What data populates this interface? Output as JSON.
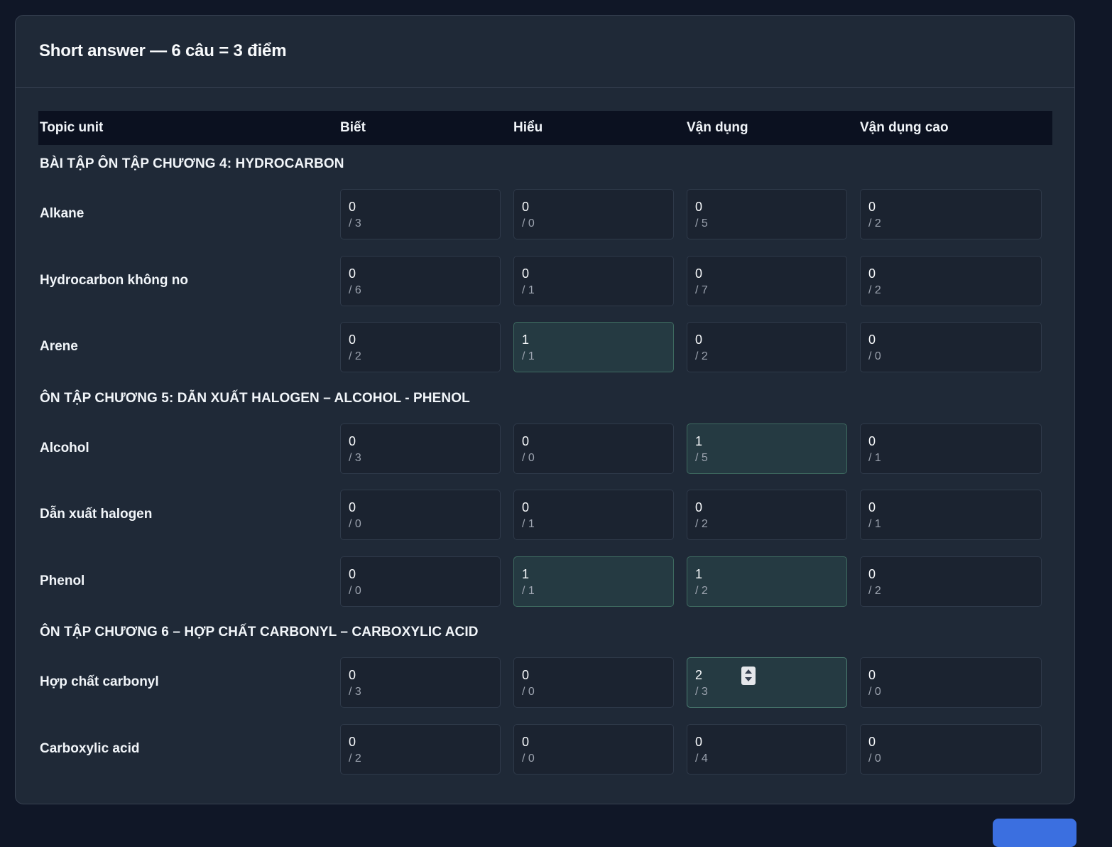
{
  "card": {
    "title": "Short answer — 6 câu = 3 điểm"
  },
  "table": {
    "columns": [
      "Topic unit",
      "Biết",
      "Hiểu",
      "Vận dụng",
      "Vận dụng cao"
    ],
    "sections": [
      {
        "title": "BÀI TẬP ÔN TẬP CHƯƠNG 4: HYDROCARBON",
        "rows": [
          {
            "label": "Alkane",
            "cells": [
              {
                "value": "0",
                "max": "/ 3"
              },
              {
                "value": "0",
                "max": "/ 0"
              },
              {
                "value": "0",
                "max": "/ 5"
              },
              {
                "value": "0",
                "max": "/ 2"
              }
            ]
          },
          {
            "label": "Hydrocarbon không no",
            "cells": [
              {
                "value": "0",
                "max": "/ 6"
              },
              {
                "value": "0",
                "max": "/ 1"
              },
              {
                "value": "0",
                "max": "/ 7"
              },
              {
                "value": "0",
                "max": "/ 2"
              }
            ]
          },
          {
            "label": "Arene",
            "cells": [
              {
                "value": "0",
                "max": "/ 2"
              },
              {
                "value": "1",
                "max": "/ 1"
              },
              {
                "value": "0",
                "max": "/ 2"
              },
              {
                "value": "0",
                "max": "/ 0"
              }
            ]
          }
        ]
      },
      {
        "title": "ÔN TẬP CHƯƠNG 5: DẪN XUẤT HALOGEN – ALCOHOL - PHENOL",
        "rows": [
          {
            "label": "Alcohol",
            "cells": [
              {
                "value": "0",
                "max": "/ 3"
              },
              {
                "value": "0",
                "max": "/ 0"
              },
              {
                "value": "1",
                "max": "/ 5"
              },
              {
                "value": "0",
                "max": "/ 1"
              }
            ]
          },
          {
            "label": "Dẫn xuất halogen",
            "cells": [
              {
                "value": "0",
                "max": "/ 0"
              },
              {
                "value": "0",
                "max": "/ 1"
              },
              {
                "value": "0",
                "max": "/ 2"
              },
              {
                "value": "0",
                "max": "/ 1"
              }
            ]
          },
          {
            "label": "Phenol",
            "cells": [
              {
                "value": "0",
                "max": "/ 0"
              },
              {
                "value": "1",
                "max": "/ 1"
              },
              {
                "value": "1",
                "max": "/ 2"
              },
              {
                "value": "0",
                "max": "/ 2"
              }
            ]
          }
        ]
      },
      {
        "title": "ÔN TẬP CHƯƠNG 6 – HỢP CHẤT CARBONYL – CARBOXYLIC ACID",
        "rows": [
          {
            "label": "Hợp chất carbonyl",
            "cells": [
              {
                "value": "0",
                "max": "/ 3"
              },
              {
                "value": "0",
                "max": "/ 0"
              },
              {
                "value": "2",
                "max": "/ 3"
              },
              {
                "value": "0",
                "max": "/ 0"
              }
            ]
          },
          {
            "label": "Carboxylic acid",
            "cells": [
              {
                "value": "0",
                "max": "/ 2"
              },
              {
                "value": "0",
                "max": "/ 0"
              },
              {
                "value": "0",
                "max": "/ 4"
              },
              {
                "value": "0",
                "max": "/ 0"
              }
            ]
          }
        ]
      }
    ]
  },
  "colors": {
    "page_bg": "#101727",
    "card_bg": "#1f2937",
    "header_bg": "#0b1120",
    "cell_bg": "#1b2330",
    "cell_active_bg": "#253a42",
    "accent_button": "#3b6fe0"
  }
}
